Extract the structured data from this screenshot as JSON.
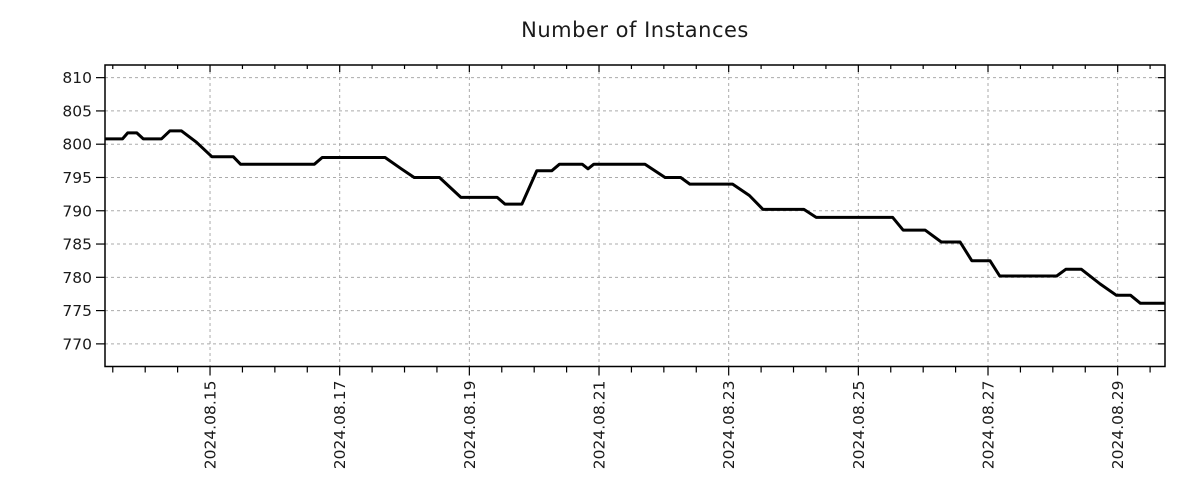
{
  "title": "Number of Instances",
  "colors": {
    "line": "#000000",
    "grid": "#ababab",
    "axis": "#000000",
    "text": "#1a1a1a",
    "background": "#ffffff"
  },
  "chart_data": {
    "type": "line",
    "title": "Number of Instances",
    "xlabel": "",
    "ylabel": "",
    "legend_position": "none",
    "grid": {
      "visible": true,
      "style": "dashed"
    },
    "x_axis": {
      "unit": "date (day of August 2024, decimal)",
      "xlim": [
        13.38,
        29.73
      ],
      "major_tick_positions": [
        15,
        17,
        19,
        21,
        23,
        25,
        27,
        29
      ],
      "major_tick_labels": [
        "2024.08.15",
        "2024.08.17",
        "2024.08.19",
        "2024.08.21",
        "2024.08.23",
        "2024.08.25",
        "2024.08.27",
        "2024.08.29"
      ],
      "minor_tick_step": 0.5,
      "label_rotation_deg": 90
    },
    "y_axis": {
      "ylim": [
        766.6,
        811.9
      ],
      "major_tick_positions": [
        770,
        775,
        780,
        785,
        790,
        795,
        800,
        805,
        810
      ],
      "major_tick_labels": [
        "770",
        "775",
        "780",
        "785",
        "790",
        "795",
        "800",
        "805",
        "810"
      ]
    },
    "series": [
      {
        "name": "Number of Instances",
        "color": "#000000",
        "line_width": 3,
        "points": [
          [
            13.38,
            800.8
          ],
          [
            13.65,
            800.8
          ],
          [
            13.73,
            801.7
          ],
          [
            13.87,
            801.7
          ],
          [
            13.97,
            800.8
          ],
          [
            14.25,
            800.8
          ],
          [
            14.38,
            802.0
          ],
          [
            14.56,
            802.0
          ],
          [
            14.79,
            800.3
          ],
          [
            15.03,
            798.1
          ],
          [
            15.36,
            798.1
          ],
          [
            15.47,
            797.0
          ],
          [
            16.61,
            797.0
          ],
          [
            16.73,
            798.0
          ],
          [
            17.7,
            798.0
          ],
          [
            17.95,
            796.3
          ],
          [
            18.15,
            795.0
          ],
          [
            18.54,
            795.0
          ],
          [
            18.87,
            792.0
          ],
          [
            19.43,
            792.0
          ],
          [
            19.55,
            791.0
          ],
          [
            19.81,
            791.0
          ],
          [
            20.04,
            796.0
          ],
          [
            20.27,
            796.0
          ],
          [
            20.39,
            797.0
          ],
          [
            20.74,
            797.0
          ],
          [
            20.83,
            796.3
          ],
          [
            20.92,
            797.0
          ],
          [
            21.71,
            797.0
          ],
          [
            22.02,
            795.0
          ],
          [
            22.26,
            795.0
          ],
          [
            22.4,
            794.0
          ],
          [
            23.06,
            794.0
          ],
          [
            23.32,
            792.3
          ],
          [
            23.53,
            790.2
          ],
          [
            24.16,
            790.2
          ],
          [
            24.35,
            789.0
          ],
          [
            25.53,
            789.0
          ],
          [
            25.69,
            787.1
          ],
          [
            26.03,
            787.1
          ],
          [
            26.28,
            785.3
          ],
          [
            26.57,
            785.3
          ],
          [
            26.75,
            782.5
          ],
          [
            27.03,
            782.5
          ],
          [
            27.18,
            780.2
          ],
          [
            28.06,
            780.2
          ],
          [
            28.2,
            781.2
          ],
          [
            28.44,
            781.2
          ],
          [
            28.73,
            779.0
          ],
          [
            28.98,
            777.3
          ],
          [
            29.2,
            777.3
          ],
          [
            29.35,
            776.1
          ],
          [
            29.73,
            776.1
          ]
        ]
      }
    ]
  }
}
